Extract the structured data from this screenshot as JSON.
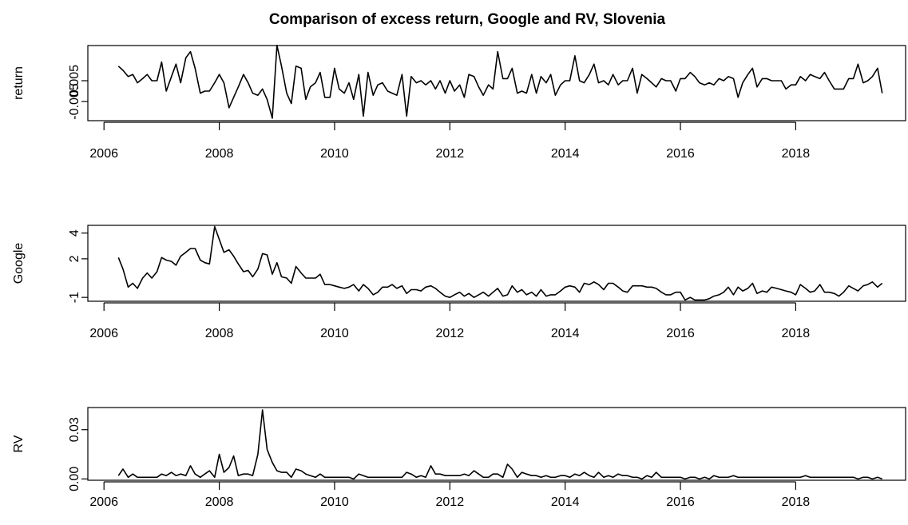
{
  "title": "Comparison of excess return, Google and RV, Slovenia",
  "chart_data": [
    {
      "type": "line",
      "ylabel": "return",
      "color": "#000000",
      "x": [
        2006.25,
        2006.33,
        2006.42,
        2006.5,
        2006.58,
        2006.67,
        2006.75,
        2006.83,
        2006.92,
        2007,
        2007.08,
        2007.17,
        2007.25,
        2007.33,
        2007.42,
        2007.5,
        2007.58,
        2007.67,
        2007.75,
        2007.83,
        2007.92,
        2008,
        2008.08,
        2008.17,
        2008.25,
        2008.33,
        2008.42,
        2008.5,
        2008.58,
        2008.67,
        2008.75,
        2008.83,
        2008.92,
        2009,
        2009.08,
        2009.17,
        2009.25,
        2009.33,
        2009.42,
        2009.5,
        2009.58,
        2009.67,
        2009.75,
        2009.83,
        2009.92,
        2010,
        2010.08,
        2010.17,
        2010.25,
        2010.33,
        2010.42,
        2010.5,
        2010.58,
        2010.67,
        2010.75,
        2010.83,
        2010.92,
        2011,
        2011.08,
        2011.17,
        2011.25,
        2011.33,
        2011.42,
        2011.5,
        2011.58,
        2011.67,
        2011.75,
        2011.83,
        2011.92,
        2012,
        2012.08,
        2012.17,
        2012.25,
        2012.33,
        2012.42,
        2012.5,
        2012.58,
        2012.67,
        2012.75,
        2012.83,
        2012.92,
        2013,
        2013.08,
        2013.17,
        2013.25,
        2013.33,
        2013.42,
        2013.5,
        2013.58,
        2013.67,
        2013.75,
        2013.83,
        2013.92,
        2014,
        2014.08,
        2014.17,
        2014.25,
        2014.33,
        2014.42,
        2014.5,
        2014.58,
        2014.67,
        2014.75,
        2014.83,
        2014.92,
        2015,
        2015.08,
        2015.17,
        2015.25,
        2015.33,
        2015.42,
        2015.5,
        2015.58,
        2015.67,
        2015.75,
        2015.83,
        2015.92,
        2016,
        2016.08,
        2016.17,
        2016.25,
        2016.33,
        2016.42,
        2016.5,
        2016.58,
        2016.67,
        2016.75,
        2016.83,
        2016.92,
        2017,
        2017.08,
        2017.17,
        2017.25,
        2017.33,
        2017.42,
        2017.5,
        2017.58,
        2017.67,
        2017.75,
        2017.83,
        2017.92,
        2018,
        2018.08,
        2018.17,
        2018.25,
        2018.33,
        2018.42,
        2018.5,
        2018.58,
        2018.67,
        2018.75,
        2018.83,
        2018.92,
        2019,
        2019.08,
        2019.17,
        2019.25,
        2019.33,
        2019.42,
        2019.5
      ],
      "values": [
        0.012,
        0.01,
        0.007,
        0.008,
        0.004,
        0.006,
        0.008,
        0.005,
        0.005,
        0.014,
        0.0,
        0.007,
        0.013,
        0.004,
        0.016,
        0.019,
        0.011,
        -0.001,
        0.0,
        0.0,
        0.004,
        0.008,
        0.004,
        -0.008,
        -0.003,
        0.002,
        0.008,
        0.004,
        -0.001,
        -0.002,
        0.001,
        -0.004,
        -0.013,
        0.022,
        0.012,
        -0.001,
        -0.006,
        0.012,
        0.011,
        -0.004,
        0.002,
        0.004,
        0.009,
        -0.003,
        -0.003,
        0.011,
        0.001,
        -0.001,
        0.004,
        -0.004,
        0.008,
        -0.012,
        0.009,
        -0.002,
        0.003,
        0.004,
        0.0,
        -0.001,
        -0.002,
        0.008,
        -0.012,
        0.007,
        0.004,
        0.005,
        0.003,
        0.005,
        0.001,
        0.005,
        -0.001,
        0.005,
        0.0,
        0.003,
        -0.003,
        0.008,
        0.007,
        0.002,
        -0.002,
        0.003,
        0.001,
        0.019,
        0.006,
        0.006,
        0.011,
        -0.001,
        0.0,
        -0.001,
        0.008,
        -0.001,
        0.007,
        0.004,
        0.008,
        -0.002,
        0.003,
        0.005,
        0.005,
        0.017,
        0.005,
        0.004,
        0.008,
        0.013,
        0.004,
        0.005,
        0.003,
        0.008,
        0.003,
        0.005,
        0.005,
        0.011,
        -0.001,
        0.008,
        0.006,
        0.004,
        0.002,
        0.006,
        0.005,
        0.005,
        0.0,
        0.006,
        0.006,
        0.009,
        0.007,
        0.004,
        0.003,
        0.004,
        0.003,
        0.006,
        0.005,
        0.007,
        0.006,
        -0.003,
        0.004,
        0.008,
        0.011,
        0.002,
        0.006,
        0.006,
        0.005,
        0.005,
        0.005,
        0.001,
        0.003,
        0.003,
        0.007,
        0.005,
        0.008,
        0.007,
        0.006,
        0.009,
        0.005,
        0.001,
        0.001,
        0.001,
        0.006,
        0.006,
        0.013,
        0.004,
        0.005,
        0.007,
        0.011,
        -0.001
      ],
      "xlim": [
        2005.72,
        2019.92
      ],
      "xticks": [
        2006,
        2008,
        2010,
        2012,
        2014,
        2016,
        2018
      ],
      "ylim": [
        -0.0142,
        0.0219
      ],
      "yticks": [
        -0.005,
        0.005
      ]
    },
    {
      "type": "line",
      "ylabel": "Google",
      "color": "#000000",
      "x": [
        2006.25,
        2006.33,
        2006.42,
        2006.5,
        2006.58,
        2006.67,
        2006.75,
        2006.83,
        2006.92,
        2007,
        2007.08,
        2007.17,
        2007.25,
        2007.33,
        2007.42,
        2007.5,
        2007.58,
        2007.67,
        2007.75,
        2007.83,
        2007.92,
        2008,
        2008.08,
        2008.17,
        2008.25,
        2008.33,
        2008.42,
        2008.5,
        2008.58,
        2008.67,
        2008.75,
        2008.83,
        2008.92,
        2009,
        2009.08,
        2009.17,
        2009.25,
        2009.33,
        2009.42,
        2009.5,
        2009.58,
        2009.67,
        2009.75,
        2009.83,
        2009.92,
        2010,
        2010.08,
        2010.17,
        2010.25,
        2010.33,
        2010.42,
        2010.5,
        2010.58,
        2010.67,
        2010.75,
        2010.83,
        2010.92,
        2011,
        2011.08,
        2011.17,
        2011.25,
        2011.33,
        2011.42,
        2011.5,
        2011.58,
        2011.67,
        2011.75,
        2011.83,
        2011.92,
        2012,
        2012.08,
        2012.17,
        2012.25,
        2012.33,
        2012.42,
        2012.5,
        2012.58,
        2012.67,
        2012.75,
        2012.83,
        2012.92,
        2013,
        2013.08,
        2013.17,
        2013.25,
        2013.33,
        2013.42,
        2013.5,
        2013.58,
        2013.67,
        2013.75,
        2013.83,
        2013.92,
        2014,
        2014.08,
        2014.17,
        2014.25,
        2014.33,
        2014.42,
        2014.5,
        2014.58,
        2014.67,
        2014.75,
        2014.83,
        2014.92,
        2015,
        2015.08,
        2015.17,
        2015.25,
        2015.33,
        2015.42,
        2015.5,
        2015.58,
        2015.67,
        2015.75,
        2015.83,
        2015.92,
        2016,
        2016.08,
        2016.17,
        2016.25,
        2016.33,
        2016.42,
        2016.5,
        2016.58,
        2016.67,
        2016.75,
        2016.83,
        2016.92,
        2017,
        2017.08,
        2017.17,
        2017.25,
        2017.33,
        2017.42,
        2017.5,
        2017.58,
        2017.67,
        2017.75,
        2017.83,
        2017.92,
        2018,
        2018.08,
        2018.17,
        2018.25,
        2018.33,
        2018.42,
        2018.5,
        2018.58,
        2018.67,
        2018.75,
        2018.83,
        2018.92,
        2019,
        2019.08,
        2019.17,
        2019.25,
        2019.33,
        2019.42,
        2019.5
      ],
      "values": [
        2.1,
        1.2,
        -0.2,
        0.1,
        -0.3,
        0.5,
        0.9,
        0.5,
        1.0,
        2.1,
        1.9,
        1.8,
        1.5,
        2.2,
        2.5,
        2.8,
        2.8,
        1.9,
        1.7,
        1.6,
        4.5,
        3.5,
        2.5,
        2.7,
        2.2,
        1.6,
        1.0,
        1.1,
        0.6,
        1.2,
        2.4,
        2.3,
        0.8,
        1.7,
        0.6,
        0.5,
        0.1,
        1.4,
        0.9,
        0.5,
        0.5,
        0.5,
        0.8,
        0.0,
        0.0,
        -0.1,
        -0.2,
        -0.3,
        -0.2,
        0.0,
        -0.5,
        0.0,
        -0.3,
        -0.8,
        -0.6,
        -0.2,
        -0.2,
        0.0,
        -0.3,
        -0.1,
        -0.7,
        -0.4,
        -0.4,
        -0.5,
        -0.2,
        -0.1,
        -0.3,
        -0.6,
        -0.9,
        -1.0,
        -0.8,
        -0.6,
        -0.9,
        -0.7,
        -1.0,
        -0.8,
        -0.6,
        -0.9,
        -0.6,
        -0.3,
        -0.9,
        -0.8,
        -0.1,
        -0.6,
        -0.4,
        -0.8,
        -0.6,
        -0.9,
        -0.4,
        -0.9,
        -0.8,
        -0.8,
        -0.5,
        -0.2,
        -0.1,
        -0.2,
        -0.6,
        0.1,
        0.0,
        0.2,
        0.0,
        -0.4,
        0.1,
        0.1,
        -0.2,
        -0.5,
        -0.6,
        -0.1,
        -0.1,
        -0.1,
        -0.2,
        -0.2,
        -0.3,
        -0.6,
        -0.8,
        -0.8,
        -0.6,
        -0.6,
        -1.2,
        -1.0,
        -1.2,
        -1.2,
        -1.2,
        -1.1,
        -0.9,
        -0.8,
        -0.6,
        -0.2,
        -0.8,
        -0.2,
        -0.5,
        -0.3,
        0.1,
        -0.7,
        -0.5,
        -0.6,
        -0.2,
        -0.3,
        -0.4,
        -0.5,
        -0.6,
        -0.8,
        0.0,
        -0.3,
        -0.6,
        -0.5,
        0.0,
        -0.6,
        -0.6,
        -0.7,
        -0.9,
        -0.6,
        -0.1,
        -0.3,
        -0.5,
        -0.1,
        0.0,
        0.2,
        -0.2,
        0.1
      ],
      "xlim": [
        2005.72,
        2019.92
      ],
      "xticks": [
        2006,
        2008,
        2010,
        2012,
        2014,
        2016,
        2018
      ],
      "ylim": [
        -1.3,
        4.6
      ],
      "yticks": [
        -1,
        2,
        4
      ]
    },
    {
      "type": "line",
      "ylabel": "RV",
      "color": "#000000",
      "x": [
        2006.25,
        2006.33,
        2006.42,
        2006.5,
        2006.58,
        2006.67,
        2006.75,
        2006.83,
        2006.92,
        2007,
        2007.08,
        2007.17,
        2007.25,
        2007.33,
        2007.42,
        2007.5,
        2007.58,
        2007.67,
        2007.75,
        2007.83,
        2007.92,
        2008,
        2008.08,
        2008.17,
        2008.25,
        2008.33,
        2008.42,
        2008.5,
        2008.58,
        2008.67,
        2008.75,
        2008.83,
        2008.92,
        2009,
        2009.08,
        2009.17,
        2009.25,
        2009.33,
        2009.42,
        2009.5,
        2009.58,
        2009.67,
        2009.75,
        2009.83,
        2009.92,
        2010,
        2010.08,
        2010.17,
        2010.25,
        2010.33,
        2010.42,
        2010.5,
        2010.58,
        2010.67,
        2010.75,
        2010.83,
        2010.92,
        2011,
        2011.08,
        2011.17,
        2011.25,
        2011.33,
        2011.42,
        2011.5,
        2011.58,
        2011.67,
        2011.75,
        2011.83,
        2011.92,
        2012,
        2012.08,
        2012.17,
        2012.25,
        2012.33,
        2012.42,
        2012.5,
        2012.58,
        2012.67,
        2012.75,
        2012.83,
        2012.92,
        2013,
        2013.08,
        2013.17,
        2013.25,
        2013.33,
        2013.42,
        2013.5,
        2013.58,
        2013.67,
        2013.75,
        2013.83,
        2013.92,
        2014,
        2014.08,
        2014.17,
        2014.25,
        2014.33,
        2014.42,
        2014.5,
        2014.58,
        2014.67,
        2014.75,
        2014.83,
        2014.92,
        2015,
        2015.08,
        2015.17,
        2015.25,
        2015.33,
        2015.42,
        2015.5,
        2015.58,
        2015.67,
        2015.75,
        2015.83,
        2015.92,
        2016,
        2016.08,
        2016.17,
        2016.25,
        2016.33,
        2016.42,
        2016.5,
        2016.58,
        2016.67,
        2016.75,
        2016.83,
        2016.92,
        2017,
        2017.08,
        2017.17,
        2017.25,
        2017.33,
        2017.42,
        2017.5,
        2017.58,
        2017.67,
        2017.75,
        2017.83,
        2017.92,
        2018,
        2018.08,
        2018.17,
        2018.25,
        2018.33,
        2018.42,
        2018.5,
        2018.58,
        2018.67,
        2018.75,
        2018.83,
        2018.92,
        2019,
        2019.08,
        2019.17,
        2019.25,
        2019.33,
        2019.42,
        2019.5
      ],
      "values": [
        0.002,
        0.006,
        0.001,
        0.003,
        0.001,
        0.001,
        0.001,
        0.001,
        0.001,
        0.003,
        0.002,
        0.004,
        0.002,
        0.003,
        0.002,
        0.008,
        0.003,
        0.001,
        0.003,
        0.005,
        0.001,
        0.015,
        0.004,
        0.007,
        0.014,
        0.002,
        0.003,
        0.003,
        0.002,
        0.015,
        0.042,
        0.018,
        0.01,
        0.005,
        0.004,
        0.004,
        0.001,
        0.006,
        0.005,
        0.003,
        0.002,
        0.001,
        0.003,
        0.001,
        0.001,
        0.001,
        0.001,
        0.001,
        0.001,
        0.0,
        0.003,
        0.002,
        0.001,
        0.001,
        0.001,
        0.001,
        0.001,
        0.001,
        0.001,
        0.001,
        0.004,
        0.003,
        0.001,
        0.002,
        0.001,
        0.008,
        0.003,
        0.003,
        0.002,
        0.002,
        0.002,
        0.002,
        0.003,
        0.002,
        0.005,
        0.003,
        0.001,
        0.001,
        0.003,
        0.003,
        0.001,
        0.009,
        0.006,
        0.001,
        0.004,
        0.003,
        0.002,
        0.002,
        0.001,
        0.002,
        0.001,
        0.001,
        0.002,
        0.002,
        0.001,
        0.003,
        0.002,
        0.004,
        0.002,
        0.001,
        0.004,
        0.001,
        0.002,
        0.001,
        0.003,
        0.002,
        0.002,
        0.001,
        0.001,
        0.0,
        0.002,
        0.001,
        0.004,
        0.001,
        0.001,
        0.001,
        0.001,
        0.001,
        0.0,
        0.001,
        0.001,
        0.0,
        0.001,
        0.0,
        0.002,
        0.001,
        0.001,
        0.001,
        0.002,
        0.001,
        0.001,
        0.001,
        0.001,
        0.001,
        0.001,
        0.001,
        0.001,
        0.001,
        0.001,
        0.001,
        0.001,
        0.001,
        0.001,
        0.002,
        0.001,
        0.001,
        0.001,
        0.001,
        0.001,
        0.001,
        0.001,
        0.001,
        0.001,
        0.001,
        0.0,
        0.001,
        0.001,
        0.0,
        0.001,
        0.0
      ],
      "xlim": [
        2005.72,
        2019.92
      ],
      "xticks": [
        2006,
        2008,
        2010,
        2012,
        2014,
        2016,
        2018
      ],
      "ylim": [
        -0.0008,
        0.0435
      ],
      "yticks": [
        {
          "value": 0,
          "label": "0.00"
        },
        0.03
      ]
    }
  ]
}
